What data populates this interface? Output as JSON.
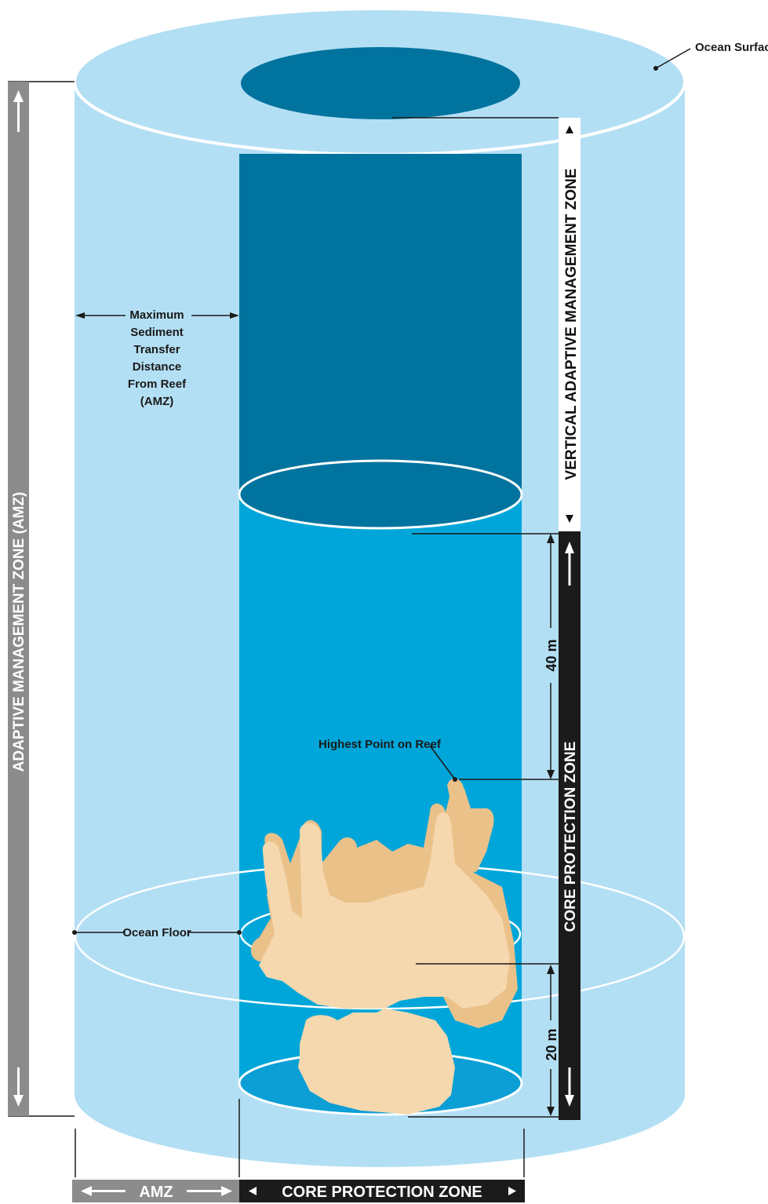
{
  "labels": {
    "ocean_surface": "Ocean Surface",
    "max_sediment": [
      "Maximum",
      "Sediment",
      "Transfer",
      "Distance",
      "From Reef",
      "(AMZ)"
    ],
    "highest_point": "Highest Point on Reef",
    "ocean_floor": "Ocean Floor",
    "depth_40": "40 m",
    "depth_20": "20 m"
  },
  "bars": {
    "left_vertical": "ADAPTIVE MANAGEMENT ZONE (AMZ)",
    "right_vertical_top": "VERTICAL ADAPTIVE MANAGEMENT ZONE",
    "right_vertical_bottom": "CORE PROTECTION ZONE",
    "bottom_amz": "AMZ",
    "bottom_core": "CORE PROTECTION ZONE"
  },
  "colors": {
    "outer_cylinder": "#b3dff4",
    "inner_dark": "#00739e",
    "inner_mid": "#00a6d9",
    "inner_light": "#0b9fd6",
    "reef_light": "#f5d8ae",
    "reef_dark": "#ebc18a",
    "bar_gray": "#8c8c8c",
    "bar_black": "#1b1b1b"
  }
}
